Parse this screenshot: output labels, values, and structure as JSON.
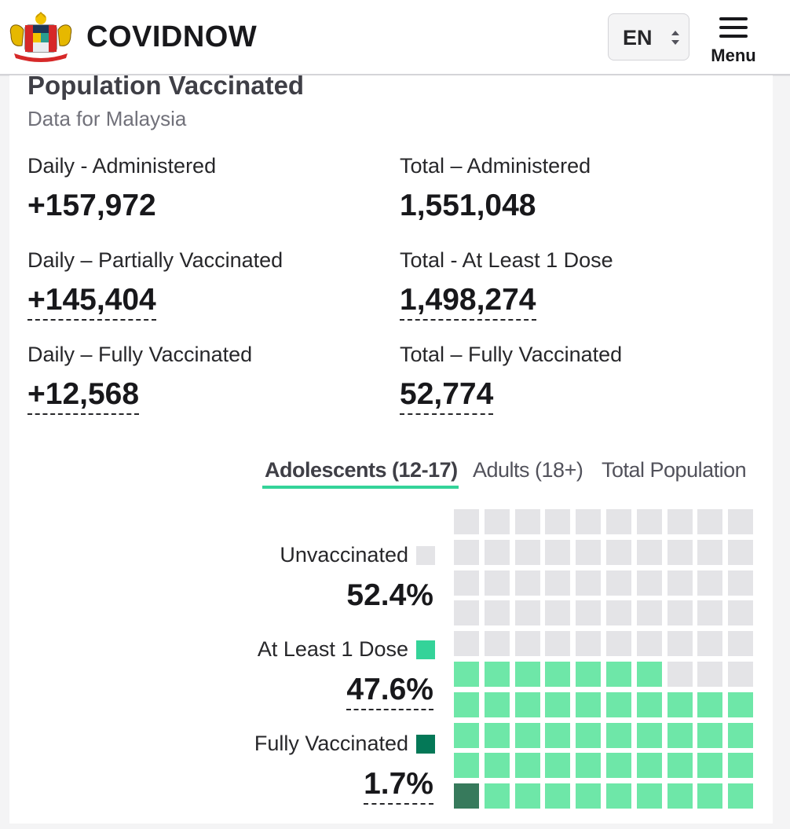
{
  "header": {
    "brand": "COVIDNOW",
    "language": "EN",
    "menu_label": "Menu"
  },
  "section": {
    "title": "Population Vaccinated",
    "subtitle": "Data for Malaysia"
  },
  "stats": [
    {
      "label": "Daily - Administered",
      "value": "+157,972"
    },
    {
      "label": "Total – Administered",
      "value": "1,551,048"
    },
    {
      "label": "Daily – Partially Vaccinated",
      "value": "+145,404"
    },
    {
      "label": "Total - At Least 1 Dose",
      "value": "1,498,274"
    },
    {
      "label": "Daily – Fully Vaccinated",
      "value": "+12,568"
    },
    {
      "label": "Total – Fully Vaccinated",
      "value": "52,774"
    }
  ],
  "tabs": [
    {
      "label": "Adolescents (12-17)",
      "active": true
    },
    {
      "label": "Adults (18+)",
      "active": false
    },
    {
      "label": "Total Population",
      "active": false
    }
  ],
  "legend": [
    {
      "label": "Unvaccinated",
      "value": "52.4%",
      "color": "#e4e4e7"
    },
    {
      "label": "At Least 1 Dose",
      "value": "47.6%",
      "color": "#34d399"
    },
    {
      "label": "Fully Vaccinated",
      "value": "1.7%",
      "color": "#047857"
    }
  ],
  "chart_data": {
    "type": "waffle",
    "grid": [
      10,
      10
    ],
    "categories": [
      "Unvaccinated",
      "At Least 1 Dose",
      "Fully Vaccinated"
    ],
    "values": [
      52.4,
      47.6,
      1.7
    ],
    "cells": {
      "unvaccinated": 53,
      "at_least_1_dose": 46,
      "fully_vaccinated": 1
    },
    "colors": {
      "unvaccinated": "#e4e4e7",
      "at_least_1_dose": "#6ee7a8",
      "fully_vaccinated": "#377a5c"
    }
  }
}
